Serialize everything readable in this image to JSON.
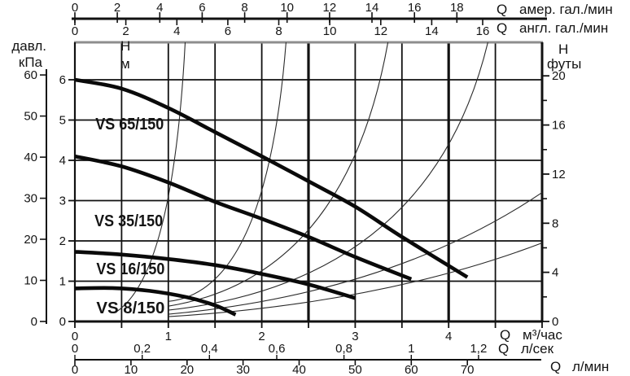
{
  "chart_data": {
    "type": "line",
    "description": "Pump head-flow performance curves, VS series circulators, with system resistance curves",
    "x_base_axis": {
      "unit": "м³/час",
      "min": 0,
      "max": 5,
      "grid_step": 0.5,
      "bold_gridlines": [
        2.5,
        4.0
      ]
    },
    "y_base_axis": {
      "unit": "м",
      "min": 0,
      "max": 6,
      "grid_step": 1,
      "frame_top_m": 6.93
    },
    "series": [
      {
        "name": "VS 65/150",
        "points": [
          [
            0,
            6.0
          ],
          [
            0.5,
            5.78
          ],
          [
            1.0,
            5.3
          ],
          [
            1.5,
            4.7
          ],
          [
            2.0,
            4.1
          ],
          [
            2.5,
            3.48
          ],
          [
            3.0,
            2.85
          ],
          [
            3.5,
            2.1
          ],
          [
            4.2,
            1.1
          ]
        ],
        "label_pos": [
          0.22,
          4.77
        ]
      },
      {
        "name": "VS 35/150",
        "points": [
          [
            0,
            4.1
          ],
          [
            0.5,
            3.85
          ],
          [
            1.0,
            3.45
          ],
          [
            1.5,
            2.97
          ],
          [
            2.0,
            2.55
          ],
          [
            2.5,
            2.1
          ],
          [
            3.0,
            1.6
          ],
          [
            3.6,
            1.05
          ]
        ],
        "label_pos": [
          0.21,
          2.36
        ]
      },
      {
        "name": "VS 16/150",
        "points": [
          [
            0,
            1.73
          ],
          [
            0.5,
            1.66
          ],
          [
            1.0,
            1.55
          ],
          [
            1.5,
            1.4
          ],
          [
            2.0,
            1.18
          ],
          [
            2.5,
            0.92
          ],
          [
            3.0,
            0.58
          ]
        ],
        "label_pos": [
          0.23,
          1.17
        ]
      },
      {
        "name": "VS 8/150",
        "points": [
          [
            0,
            0.82
          ],
          [
            0.4,
            0.83
          ],
          [
            0.8,
            0.76
          ],
          [
            1.2,
            0.6
          ],
          [
            1.5,
            0.4
          ],
          [
            1.72,
            0.17
          ]
        ],
        "label_pos": [
          0.23,
          0.2
        ]
      }
    ],
    "system_curves": [
      {
        "start": [
          0.45,
          0.25
        ],
        "ctrl": [
          1.05,
          1.2
        ],
        "end": [
          1.18,
          6.93
        ]
      },
      {
        "start": [
          1.0,
          0.5
        ],
        "ctrl": [
          2.05,
          0.75
        ],
        "end": [
          2.26,
          6.93
        ]
      },
      {
        "start": [
          1.0,
          0.38
        ],
        "ctrl": [
          2.9,
          1.1
        ],
        "end": [
          3.35,
          6.93
        ]
      },
      {
        "start": [
          1.0,
          0.28
        ],
        "ctrl": [
          3.8,
          1.0
        ],
        "end": [
          4.42,
          6.93
        ]
      },
      {
        "start": [
          1.0,
          0.18
        ],
        "ctrl": [
          3.4,
          0.7
        ],
        "end": [
          5.0,
          3.2
        ]
      },
      {
        "start": [
          1.0,
          0.12
        ],
        "ctrl": [
          3.3,
          0.45
        ],
        "end": [
          5.0,
          1.95
        ]
      }
    ],
    "axes": {
      "us_gpm": {
        "q": "Q",
        "label": "амер. гал./мин",
        "ticks": [
          0,
          2,
          4,
          6,
          8,
          10,
          12,
          14,
          16,
          18
        ],
        "to_m3h": 0.22712
      },
      "imp_gpm": {
        "q": "Q",
        "label": "англ. гал./мин",
        "ticks": [
          0,
          2,
          4,
          6,
          8,
          10,
          12,
          14,
          16
        ],
        "to_m3h": 0.27276
      },
      "m3h": {
        "q": "Q",
        "label": "м³/час",
        "labeled_ticks": [
          0,
          1,
          2,
          3,
          4
        ],
        "tick_step": 0.5
      },
      "l_s": {
        "q": "Q",
        "label": "л/сек",
        "tick_labels": [
          "0",
          "0,2",
          "0,4",
          "0,6",
          "0,8",
          "1",
          "1,2"
        ],
        "tick_values": [
          0,
          0.2,
          0.4,
          0.6,
          0.8,
          1.0,
          1.2
        ],
        "to_m3h": 3.6
      },
      "l_min": {
        "q": "Q",
        "label": "л/мин",
        "ticks": [
          0,
          10,
          20,
          30,
          40,
          50,
          60,
          70
        ],
        "to_m3h": 0.06
      },
      "kpa": {
        "line1": "давл.",
        "line2": "кПа",
        "ticks": [
          60,
          50,
          40,
          30,
          20,
          10,
          0
        ],
        "to_m": 0.101972
      },
      "m": {
        "line1": "Н",
        "line2": "м",
        "ticks": [
          6,
          5,
          4,
          3,
          2,
          1,
          0
        ]
      },
      "ft": {
        "line1": "Н",
        "line2": "футы",
        "labeled_ticks": [
          20,
          16,
          12,
          8,
          4,
          0
        ],
        "minor_ticks": [
          18,
          14,
          10,
          6,
          2
        ],
        "to_m": 0.3048
      }
    },
    "colors": {
      "pump_curve": "#0a0a0a",
      "grid": "#111111",
      "system_curve": "#2a2a2a",
      "frame_top": "#8e8e8e",
      "text": "#141414"
    }
  }
}
